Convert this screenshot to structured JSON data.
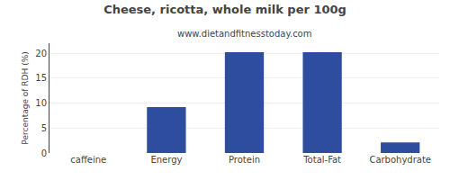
{
  "chart_data": {
    "type": "bar",
    "title": "Cheese, ricotta, whole milk per 100g",
    "subtitle": "www.dietandfitnesstoday.com",
    "categories": [
      "caffeine",
      "Energy",
      "Protein",
      "Total-Fat",
      "Carbohydrate"
    ],
    "values": [
      0,
      9.2,
      20.2,
      20.2,
      2.1
    ],
    "color": "#2e4d9e",
    "ylabel": "Percentage of RDH (%)",
    "ylim": [
      0,
      22
    ],
    "yticks": [
      0,
      5,
      10,
      15,
      20
    ],
    "grid": true
  }
}
